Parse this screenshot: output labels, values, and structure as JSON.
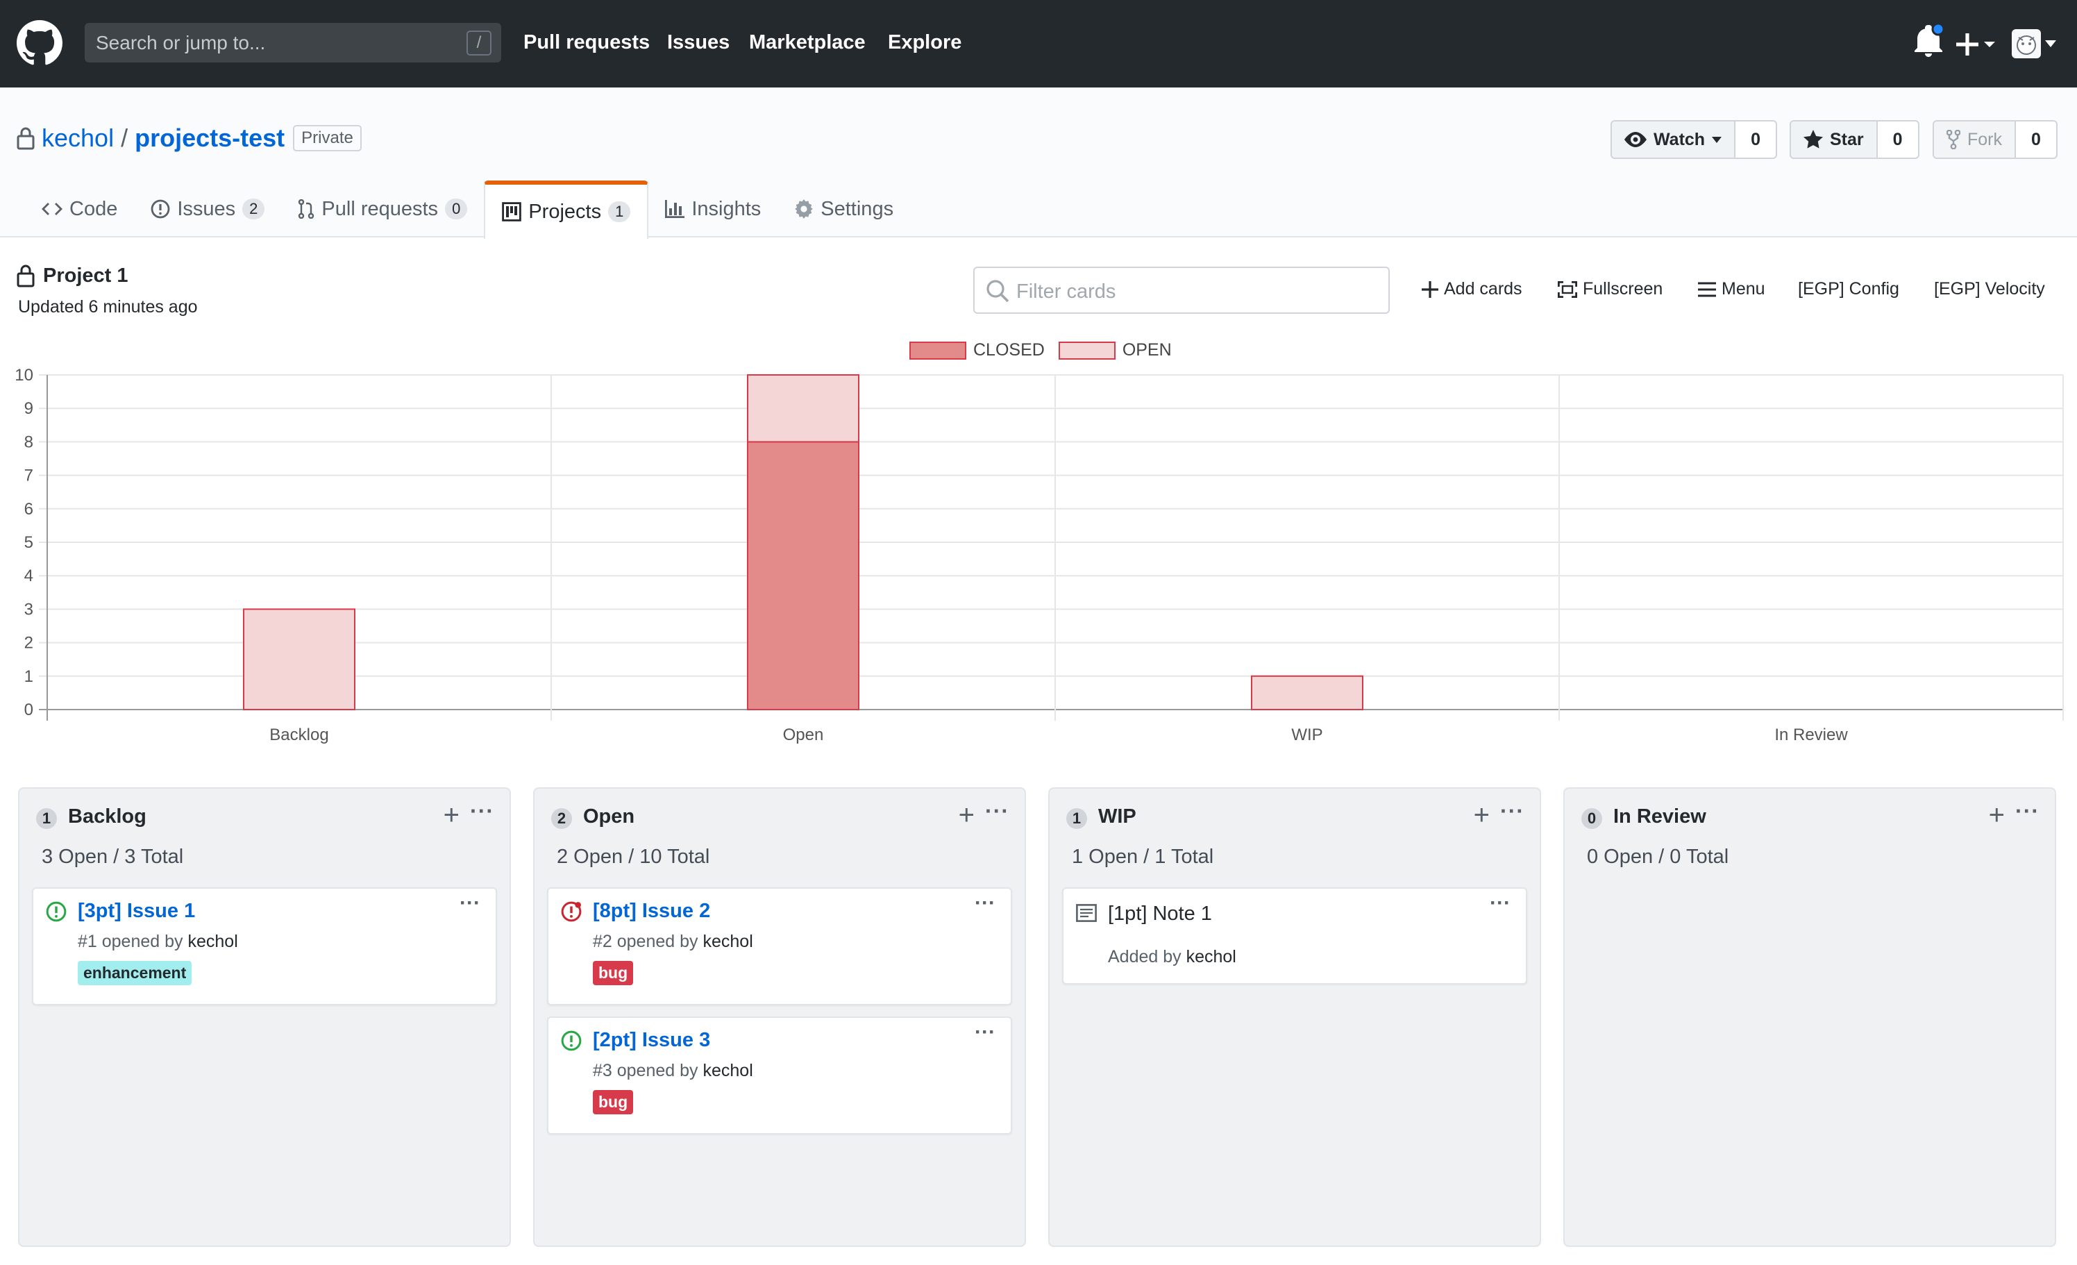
{
  "header": {
    "search_placeholder": "Search or jump to...",
    "slash_key": "/",
    "nav": [
      "Pull requests",
      "Issues",
      "Marketplace",
      "Explore"
    ]
  },
  "repo": {
    "owner": "kechol",
    "separator": "/",
    "name": "projects-test",
    "visibility": "Private",
    "watch_label": "Watch",
    "watch_count": "0",
    "star_label": "Star",
    "star_count": "0",
    "fork_label": "Fork",
    "fork_count": "0",
    "tabs": [
      {
        "label": "Code",
        "count": null
      },
      {
        "label": "Issues",
        "count": "2"
      },
      {
        "label": "Pull requests",
        "count": "0"
      },
      {
        "label": "Projects",
        "count": "1"
      },
      {
        "label": "Insights",
        "count": null
      },
      {
        "label": "Settings",
        "count": null
      }
    ]
  },
  "project": {
    "title": "Project 1",
    "updated": "Updated 6 minutes ago",
    "filter_placeholder": "Filter cards",
    "actions": [
      "Add cards",
      "Fullscreen",
      "Menu",
      "[EGP] Config",
      "[EGP] Velocity"
    ]
  },
  "chart_data": {
    "type": "bar",
    "stacked": true,
    "categories": [
      "Backlog",
      "Open",
      "WIP",
      "In Review"
    ],
    "series": [
      {
        "name": "CLOSED",
        "values": [
          0,
          8,
          0,
          0
        ],
        "color": "#e38a8a"
      },
      {
        "name": "OPEN",
        "values": [
          3,
          2,
          1,
          0
        ],
        "color": "#f5d6d7"
      }
    ],
    "ylim": [
      0,
      10
    ],
    "yticks": [
      "0",
      "1",
      "2",
      "3",
      "4",
      "5",
      "6",
      "7",
      "8",
      "9",
      "10"
    ],
    "grid": true,
    "legend_position": "top-center",
    "border_color": "#d73a49"
  },
  "columns": [
    {
      "count": "1",
      "name": "Backlog",
      "summary": "3 Open / 3 Total",
      "cards": [
        {
          "kind": "issue",
          "state": "open",
          "title": "[3pt] Issue 1",
          "meta_prefix": "#1 opened by",
          "author": "kechol",
          "label": {
            "text": "enhancement",
            "bg": "#a2eeef",
            "fg": "#24292e"
          }
        }
      ]
    },
    {
      "count": "2",
      "name": "Open",
      "summary": "2 Open / 10 Total",
      "cards": [
        {
          "kind": "issue",
          "state": "bug-open",
          "title": "[8pt] Issue 2",
          "meta_prefix": "#2 opened by",
          "author": "kechol",
          "label": {
            "text": "bug",
            "bg": "#d73a4a",
            "fg": "#ffffff"
          }
        },
        {
          "kind": "issue",
          "state": "open",
          "title": "[2pt] Issue 3",
          "meta_prefix": "#3 opened by",
          "author": "kechol",
          "label": {
            "text": "bug",
            "bg": "#d73a4a",
            "fg": "#ffffff"
          }
        }
      ]
    },
    {
      "count": "1",
      "name": "WIP",
      "summary": "1 Open / 1 Total",
      "cards": [
        {
          "kind": "note",
          "title": "[1pt] Note 1",
          "meta_prefix": "Added by",
          "author": "kechol"
        }
      ]
    },
    {
      "count": "0",
      "name": "In Review",
      "summary": "0 Open / 0 Total",
      "cards": []
    }
  ],
  "colors": {
    "header_bg": "#24292e",
    "link": "#0366d6",
    "tab_accent": "#e36209",
    "open_icon": "#28a745",
    "bug_icon": "#cb2431"
  }
}
